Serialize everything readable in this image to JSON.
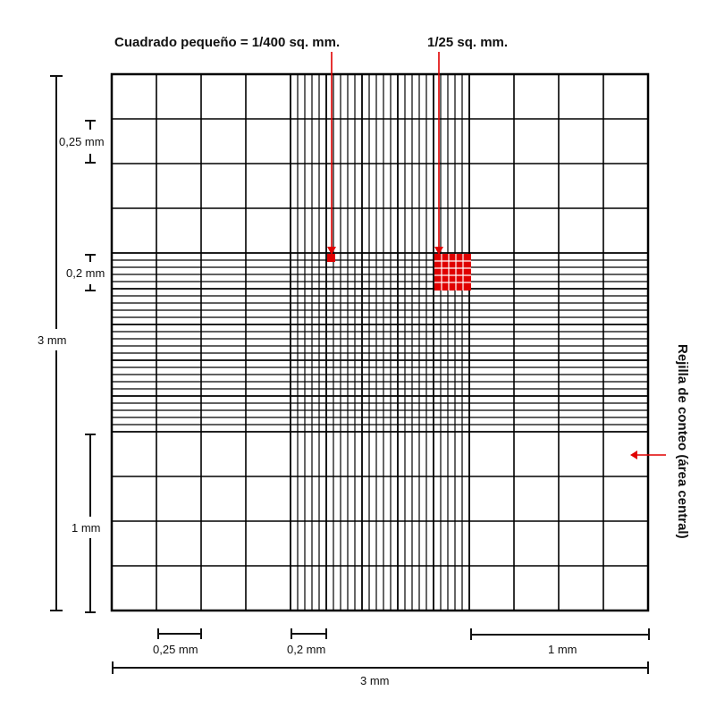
{
  "annotations": {
    "small_square": "Cuadrado pequeño = 1/400 sq. mm.",
    "medium_square": "1/25 sq. mm.",
    "side_label": "Rejilla de conteo (área central)"
  },
  "dimensions": {
    "left_025": "0,25 mm",
    "left_02": "0,2 mm",
    "left_3mm": "3 mm",
    "left_1mm": "1 mm",
    "bottom_025": "0,25 mm",
    "bottom_02": "0,2 mm",
    "bottom_1mm": "1 mm",
    "bottom_3mm": "3 mm"
  },
  "colors": {
    "grid": "#000000",
    "highlight": "#e00000",
    "text": "#111111"
  }
}
